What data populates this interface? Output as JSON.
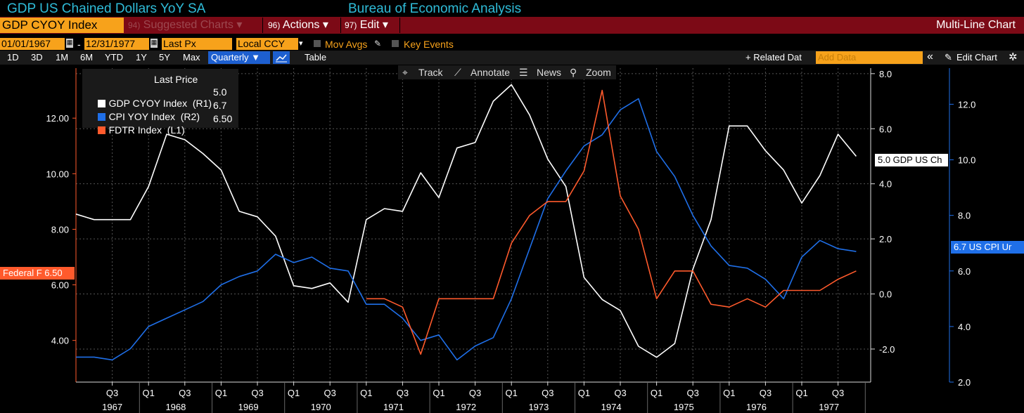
{
  "header": {
    "title": "GDP US Chained Dollars YoY SA",
    "source": "Bureau of Economic Analysis"
  },
  "menubar": {
    "ticker": "GDP CYOY Index",
    "suggested": {
      "num": "94)",
      "label": "Suggested Charts",
      "arrow": "▾"
    },
    "actions": {
      "num": "96)",
      "label": "Actions",
      "arrow": "▾"
    },
    "edit": {
      "num": "97)",
      "label": "Edit",
      "arrow": "▾"
    },
    "chart_type": "Multi-Line Chart"
  },
  "controls": {
    "start_date": "01/01/1967",
    "dash": "-",
    "end_date": "12/31/1977",
    "price_field": "Last Px",
    "currency": "Local CCY",
    "mov_avgs": "Mov Avgs",
    "key_events": "Key Events"
  },
  "range_bar": {
    "buttons": [
      "1D",
      "3D",
      "1M",
      "6M",
      "YTD",
      "1Y",
      "5Y",
      "Max"
    ],
    "periodicity": "Quarterly ▼",
    "table": "Table",
    "related": "+ Related Dat",
    "add_data_placeholder": "Add Data",
    "collapse": "«",
    "edit_chart": "Edit Chart",
    "settings_icon": "gear-icon"
  },
  "chart_tools": {
    "track": "Track",
    "annotate": "Annotate",
    "news": "News",
    "zoom": "Zoom"
  },
  "legend": {
    "heading": "Last Price",
    "rows": [
      {
        "label": "GDP CYOY Index  (R1)",
        "value": "5.0",
        "color": "#ffffff"
      },
      {
        "label": "CPI YOY Index  (R2)",
        "value": "6.7",
        "color": "#1f6fe8"
      },
      {
        "label": "FDTR Index  (L1)",
        "value": "6.50",
        "color": "#ff5a2c"
      }
    ]
  },
  "tags": {
    "left": "Federal F 6.50",
    "gdp": "5.0 GDP US Ch",
    "cpi": "6.7 US CPI Ur"
  },
  "chart_data": {
    "type": "line",
    "x": [
      "1967Q1",
      "1967Q2",
      "1967Q3",
      "1967Q4",
      "1968Q1",
      "1968Q2",
      "1968Q3",
      "1968Q4",
      "1969Q1",
      "1969Q2",
      "1969Q3",
      "1969Q4",
      "1970Q1",
      "1970Q2",
      "1970Q3",
      "1970Q4",
      "1971Q1",
      "1971Q2",
      "1971Q3",
      "1971Q4",
      "1972Q1",
      "1972Q2",
      "1972Q3",
      "1972Q4",
      "1973Q1",
      "1973Q2",
      "1973Q3",
      "1973Q4",
      "1974Q1",
      "1974Q2",
      "1974Q3",
      "1974Q4",
      "1975Q1",
      "1975Q2",
      "1975Q3",
      "1975Q4",
      "1976Q1",
      "1976Q2",
      "1976Q3",
      "1976Q4",
      "1977Q1",
      "1977Q2",
      "1977Q3",
      "1977Q4"
    ],
    "x_tick_quarters": [
      "Q3",
      "Q1",
      "Q3",
      "Q1",
      "Q3",
      "Q1",
      "Q3",
      "Q1",
      "Q3",
      "Q1",
      "Q3",
      "Q1",
      "Q3",
      "Q1",
      "Q3",
      "Q1",
      "Q3",
      "Q1",
      "Q3",
      "Q1",
      "Q3"
    ],
    "x_tick_years": [
      "1967",
      "1968",
      "1969",
      "1970",
      "1971",
      "1972",
      "1973",
      "1974",
      "1975",
      "1976",
      "1977"
    ],
    "series": [
      {
        "name": "GDP CYOY Index  (R1)",
        "axis": "R1",
        "color": "#ffffff",
        "values": [
          2.9,
          2.7,
          2.7,
          2.7,
          3.9,
          5.8,
          5.6,
          5.1,
          4.5,
          3.0,
          2.8,
          2.1,
          0.3,
          0.2,
          0.4,
          -0.3,
          2.7,
          3.1,
          3.0,
          4.4,
          3.5,
          5.3,
          5.5,
          7.0,
          7.6,
          6.5,
          4.9,
          3.9,
          0.6,
          -0.2,
          -0.6,
          -1.9,
          -2.3,
          -1.8,
          0.9,
          2.7,
          6.1,
          6.1,
          5.2,
          4.5,
          3.3,
          4.3,
          5.8,
          5.0
        ]
      },
      {
        "name": "CPI YOY Index  (R2)",
        "axis": "R2",
        "color": "#1f6fe8",
        "values": [
          2.9,
          2.9,
          2.8,
          3.2,
          4.0,
          4.3,
          4.6,
          4.9,
          5.5,
          5.8,
          6.0,
          6.6,
          6.3,
          6.5,
          6.1,
          6.0,
          4.8,
          4.8,
          4.3,
          3.5,
          3.7,
          2.8,
          3.3,
          3.6,
          5.0,
          6.8,
          8.6,
          9.6,
          10.5,
          10.9,
          11.8,
          12.2,
          10.3,
          9.4,
          8.0,
          6.9,
          6.2,
          6.1,
          5.7,
          5.0,
          6.5,
          7.1,
          6.8,
          6.7
        ]
      },
      {
        "name": "FDTR Index  (L1)",
        "axis": "L1",
        "color": "#ff5a2c",
        "values": [
          null,
          null,
          null,
          null,
          null,
          null,
          null,
          null,
          null,
          null,
          null,
          null,
          null,
          null,
          null,
          null,
          5.5,
          5.5,
          5.2,
          3.5,
          5.5,
          5.5,
          5.5,
          5.5,
          7.5,
          8.5,
          9.0,
          9.0,
          10.1,
          13.0,
          9.2,
          8.0,
          5.5,
          6.5,
          6.5,
          5.3,
          5.2,
          5.5,
          5.2,
          5.8,
          5.8,
          5.8,
          6.2,
          6.5
        ]
      }
    ],
    "axes": {
      "L1": {
        "ticks": [
          "4.00",
          "6.00",
          "8.00",
          "10.00",
          "12.00"
        ],
        "range": [
          2.5,
          13.8
        ]
      },
      "R1": {
        "ticks": [
          "-2.0",
          "0.0",
          "2.0",
          "4.0",
          "6.0",
          "8.0"
        ],
        "range": [
          -3.2,
          8.2
        ]
      },
      "R2": {
        "ticks": [
          "2.0",
          "4.0",
          "6.0",
          "8.0",
          "10.0",
          "12.0"
        ],
        "range": [
          2.0,
          13.3
        ]
      }
    },
    "grid": true
  }
}
